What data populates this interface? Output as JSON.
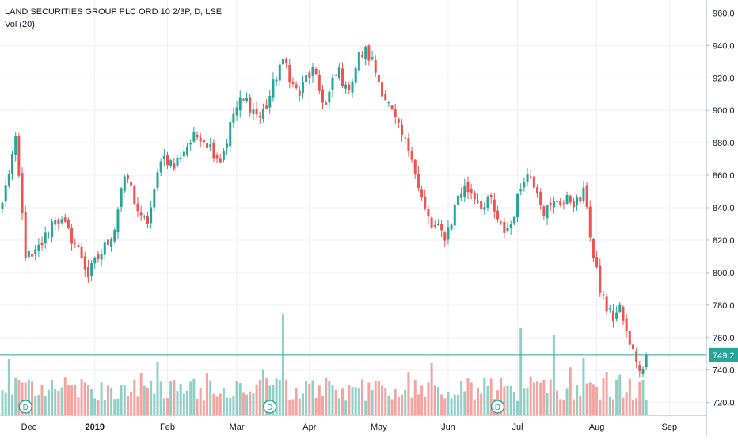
{
  "legend": {
    "symbol": "LAND SECURITIES GROUP PLC ORD 10 2/3P, D, LSE",
    "volume": "Vol (20)"
  },
  "colors": {
    "up": "#26a69a",
    "down": "#ef5350",
    "volume_up": "#8fcfc6",
    "volume_down": "#f5a3a1",
    "grid": "#eef0f4",
    "last_price_line": "#26a69a",
    "dividend_marker": "#26a69a"
  },
  "chart_data": {
    "type": "candlestick",
    "title": "LAND SECURITIES GROUP PLC ORD 10 2/3P, D, LSE",
    "indicator": "Vol (20)",
    "y_axis": {
      "position": "right",
      "range": [
        712,
        968
      ],
      "ticks": [
        960,
        940,
        920,
        900,
        880,
        860,
        840,
        820,
        800,
        780,
        760,
        740,
        720
      ]
    },
    "x_axis": {
      "ticks": [
        {
          "label": "Dec",
          "bar": 8,
          "bold": false
        },
        {
          "label": "2019",
          "bar": 28,
          "bold": true
        },
        {
          "label": "Feb",
          "bar": 50,
          "bold": false
        },
        {
          "label": "Mar",
          "bar": 71,
          "bold": false
        },
        {
          "label": "Apr",
          "bar": 93,
          "bold": false
        },
        {
          "label": "May",
          "bar": 114,
          "bold": false
        },
        {
          "label": "Jun",
          "bar": 135,
          "bold": false
        },
        {
          "label": "Jul",
          "bar": 156,
          "bold": false
        },
        {
          "label": "Aug",
          "bar": 180,
          "bold": false
        },
        {
          "label": "Sep",
          "bar": 202,
          "bold": false
        }
      ]
    },
    "last_price": {
      "value": 749.2,
      "label": "749.2"
    },
    "dividend_markers": [
      {
        "bar": 7,
        "label": "D"
      },
      {
        "bar": 81,
        "label": "D"
      },
      {
        "bar": 150,
        "label": "D"
      }
    ],
    "waypoints": [
      [
        0,
        843
      ],
      [
        3,
        872
      ],
      [
        4,
        880
      ],
      [
        5,
        858
      ],
      [
        7,
        812
      ],
      [
        9,
        808
      ],
      [
        11,
        815
      ],
      [
        13,
        822
      ],
      [
        16,
        835
      ],
      [
        19,
        828
      ],
      [
        22,
        818
      ],
      [
        24,
        810
      ],
      [
        26,
        798
      ],
      [
        28,
        806
      ],
      [
        30,
        812
      ],
      [
        32,
        820
      ],
      [
        34,
        828
      ],
      [
        36,
        852
      ],
      [
        38,
        858
      ],
      [
        40,
        845
      ],
      [
        42,
        832
      ],
      [
        44,
        832
      ],
      [
        46,
        848
      ],
      [
        48,
        872
      ],
      [
        50,
        870
      ],
      [
        52,
        865
      ],
      [
        54,
        873
      ],
      [
        56,
        878
      ],
      [
        58,
        883
      ],
      [
        60,
        885
      ],
      [
        62,
        880
      ],
      [
        64,
        875
      ],
      [
        66,
        870
      ],
      [
        68,
        882
      ],
      [
        70,
        898
      ],
      [
        72,
        905
      ],
      [
        74,
        906
      ],
      [
        76,
        900
      ],
      [
        78,
        896
      ],
      [
        80,
        903
      ],
      [
        82,
        915
      ],
      [
        84,
        928
      ],
      [
        86,
        928
      ],
      [
        88,
        915
      ],
      [
        90,
        910
      ],
      [
        92,
        920
      ],
      [
        94,
        924
      ],
      [
        96,
        912
      ],
      [
        98,
        903
      ],
      [
        100,
        917
      ],
      [
        102,
        925
      ],
      [
        104,
        912
      ],
      [
        106,
        920
      ],
      [
        108,
        933
      ],
      [
        110,
        936
      ],
      [
        112,
        930
      ],
      [
        114,
        918
      ],
      [
        116,
        908
      ],
      [
        118,
        898
      ],
      [
        120,
        888
      ],
      [
        122,
        880
      ],
      [
        124,
        874
      ],
      [
        126,
        852
      ],
      [
        128,
        838
      ],
      [
        130,
        828
      ],
      [
        132,
        826
      ],
      [
        134,
        823
      ],
      [
        136,
        832
      ],
      [
        138,
        848
      ],
      [
        140,
        852
      ],
      [
        142,
        850
      ],
      [
        144,
        845
      ],
      [
        146,
        840
      ],
      [
        148,
        845
      ],
      [
        150,
        830
      ],
      [
        152,
        826
      ],
      [
        154,
        830
      ],
      [
        156,
        845
      ],
      [
        158,
        860
      ],
      [
        160,
        860
      ],
      [
        162,
        852
      ],
      [
        164,
        838
      ],
      [
        166,
        840
      ],
      [
        168,
        845
      ],
      [
        170,
        843
      ],
      [
        172,
        845
      ],
      [
        174,
        843
      ],
      [
        175,
        845
      ],
      [
        176,
        848
      ],
      [
        177,
        843
      ],
      [
        178,
        824
      ],
      [
        179,
        808
      ],
      [
        181,
        790
      ],
      [
        183,
        778
      ],
      [
        185,
        772
      ],
      [
        187,
        778
      ],
      [
        188,
        770
      ],
      [
        189,
        762
      ],
      [
        190,
        754
      ],
      [
        191,
        755
      ],
      [
        192,
        748
      ],
      [
        193,
        737
      ],
      [
        194,
        745
      ],
      [
        195,
        749.2
      ]
    ]
  }
}
